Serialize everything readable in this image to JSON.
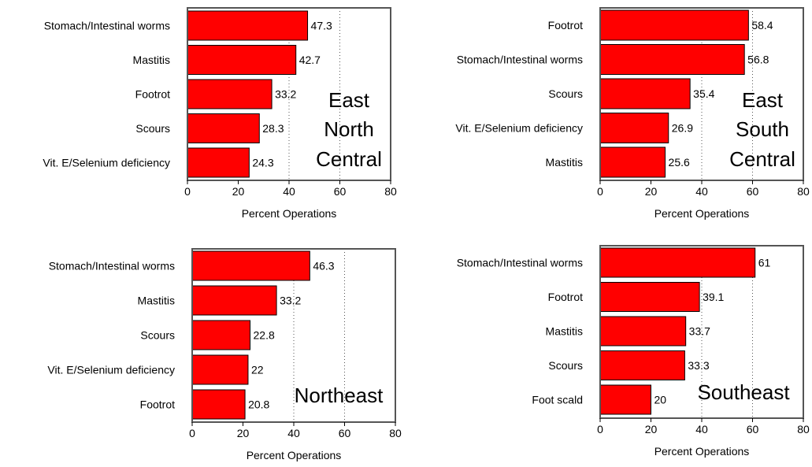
{
  "chart_data": [
    {
      "type": "bar",
      "orientation": "horizontal",
      "region_label": [
        "East",
        "North",
        "Central"
      ],
      "categories": [
        "Stomach/Intestinal worms",
        "Mastitis",
        "Footrot",
        "Scours",
        "Vit. E/Selenium deficiency"
      ],
      "values": [
        47.3,
        42.7,
        33.2,
        28.3,
        24.3
      ],
      "value_labels": [
        "47.3",
        "42.7",
        "33.2",
        "28.3",
        "24.3"
      ],
      "xlabel": "Percent Operations",
      "xlim": [
        0,
        80
      ],
      "xticks": [
        "0",
        "20",
        "40",
        "60",
        "80"
      ],
      "grid": "dotted vertical at 40 and 60",
      "bar_color": "#ff0000"
    },
    {
      "type": "bar",
      "orientation": "horizontal",
      "region_label": [
        "East",
        "South",
        "Central"
      ],
      "categories": [
        "Footrot",
        "Stomach/Intestinal worms",
        "Scours",
        "Vit. E/Selenium deficiency",
        "Mastitis"
      ],
      "values": [
        58.4,
        56.8,
        35.4,
        26.9,
        25.6
      ],
      "value_labels": [
        "58.4",
        "56.8",
        "35.4",
        "26.9",
        "25.6"
      ],
      "xlabel": "Percent Operations",
      "xlim": [
        0,
        80
      ],
      "xticks": [
        "0",
        "20",
        "40",
        "60",
        "80"
      ],
      "grid": "dotted vertical at 40 and 60",
      "bar_color": "#ff0000"
    },
    {
      "type": "bar",
      "orientation": "horizontal",
      "region_label": [
        "Northeast"
      ],
      "categories": [
        "Stomach/Intestinal worms",
        "Mastitis",
        "Scours",
        "Vit. E/Selenium deficiency",
        "Footrot"
      ],
      "values": [
        46.3,
        33.2,
        22.8,
        22,
        20.8
      ],
      "value_labels": [
        "46.3",
        "33.2",
        "22.8",
        "22",
        "20.8"
      ],
      "xlabel": "Percent Operations",
      "xlim": [
        0,
        80
      ],
      "xticks": [
        "0",
        "20",
        "40",
        "60",
        "80"
      ],
      "grid": "dotted vertical at 40 and 60",
      "bar_color": "#ff0000"
    },
    {
      "type": "bar",
      "orientation": "horizontal",
      "region_label": [
        "Southeast"
      ],
      "categories": [
        "Stomach/Intestinal worms",
        "Footrot",
        "Mastitis",
        "Scours",
        "Foot scald"
      ],
      "values": [
        61,
        39.1,
        33.7,
        33.3,
        20
      ],
      "value_labels": [
        "61",
        "39.1",
        "33.7",
        "33.3",
        "20"
      ],
      "xlabel": "Percent Operations",
      "xlim": [
        0,
        80
      ],
      "xticks": [
        "0",
        "20",
        "40",
        "60",
        "80"
      ],
      "grid": "dotted vertical at 40 and 60",
      "bar_color": "#ff0000"
    }
  ]
}
